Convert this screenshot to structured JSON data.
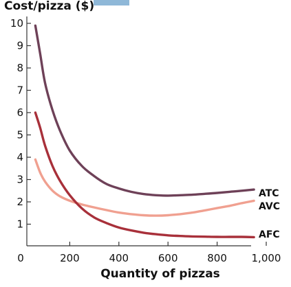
{
  "chart_data": {
    "type": "line",
    "ylabel": "Cost/pizza ($)",
    "xlabel": "Quantity of pizzas",
    "xlim": [
      0,
      1000
    ],
    "ylim": [
      0,
      10
    ],
    "grid": false,
    "x_ticks": [
      0,
      200,
      400,
      600,
      800,
      1000
    ],
    "x_tick_labels": [
      "0",
      "200",
      "400",
      "600",
      "800",
      "1,000"
    ],
    "y_ticks": [
      1,
      2,
      3,
      4,
      5,
      6,
      7,
      8,
      9,
      10
    ],
    "y_tick_labels": [
      "1",
      "2",
      "3",
      "4",
      "5",
      "6",
      "7",
      "8",
      "9",
      "10"
    ],
    "series": [
      {
        "name": "ATC",
        "color": "#6e4158",
        "points": [
          [
            60,
            9.9
          ],
          [
            80,
            8.6
          ],
          [
            100,
            7.3
          ],
          [
            130,
            6.1
          ],
          [
            160,
            5.2
          ],
          [
            200,
            4.3
          ],
          [
            250,
            3.6
          ],
          [
            300,
            3.15
          ],
          [
            350,
            2.8
          ],
          [
            400,
            2.6
          ],
          [
            450,
            2.45
          ],
          [
            500,
            2.35
          ],
          [
            550,
            2.3
          ],
          [
            600,
            2.28
          ],
          [
            650,
            2.3
          ],
          [
            700,
            2.32
          ],
          [
            750,
            2.36
          ],
          [
            800,
            2.4
          ],
          [
            850,
            2.45
          ],
          [
            900,
            2.5
          ],
          [
            950,
            2.55
          ]
        ]
      },
      {
        "name": "AVC",
        "color": "#f0a090",
        "points": [
          [
            60,
            3.9
          ],
          [
            80,
            3.3
          ],
          [
            100,
            2.9
          ],
          [
            130,
            2.5
          ],
          [
            160,
            2.25
          ],
          [
            200,
            2.05
          ],
          [
            250,
            1.88
          ],
          [
            300,
            1.75
          ],
          [
            350,
            1.63
          ],
          [
            400,
            1.52
          ],
          [
            450,
            1.45
          ],
          [
            500,
            1.4
          ],
          [
            550,
            1.38
          ],
          [
            600,
            1.4
          ],
          [
            650,
            1.45
          ],
          [
            700,
            1.52
          ],
          [
            750,
            1.62
          ],
          [
            800,
            1.72
          ],
          [
            850,
            1.82
          ],
          [
            900,
            1.94
          ],
          [
            950,
            2.05
          ]
        ]
      },
      {
        "name": "AFC",
        "color": "#a8303a",
        "points": [
          [
            60,
            6.0
          ],
          [
            80,
            5.3
          ],
          [
            100,
            4.5
          ],
          [
            130,
            3.6
          ],
          [
            160,
            2.95
          ],
          [
            200,
            2.3
          ],
          [
            250,
            1.7
          ],
          [
            300,
            1.3
          ],
          [
            350,
            1.05
          ],
          [
            400,
            0.85
          ],
          [
            450,
            0.72
          ],
          [
            500,
            0.62
          ],
          [
            550,
            0.55
          ],
          [
            600,
            0.5
          ],
          [
            650,
            0.47
          ],
          [
            700,
            0.45
          ],
          [
            750,
            0.44
          ],
          [
            800,
            0.43
          ],
          [
            850,
            0.43
          ],
          [
            900,
            0.43
          ],
          [
            950,
            0.42
          ]
        ]
      }
    ]
  }
}
